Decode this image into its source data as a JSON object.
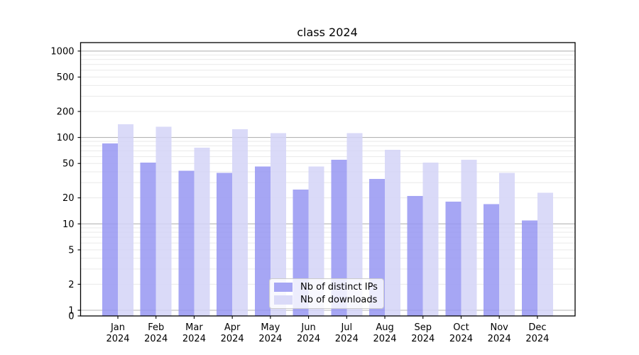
{
  "chart_data": {
    "type": "bar",
    "title": "class 2024",
    "categories": [
      "Jan 2024",
      "Feb 2024",
      "Mar 2024",
      "Apr 2024",
      "May 2024",
      "Jun 2024",
      "Jul 2024",
      "Aug 2024",
      "Sep 2024",
      "Oct 2024",
      "Nov 2024",
      "Dec 2024"
    ],
    "series": [
      {
        "name": "Nb of distinct IPs",
        "color": "#a6a6f4",
        "values": [
          85,
          51,
          41,
          39,
          46,
          25,
          55,
          33,
          21,
          18,
          17,
          11
        ]
      },
      {
        "name": "Nb of downloads",
        "color": "#dadaf8",
        "values": [
          142,
          133,
          76,
          124,
          112,
          46,
          112,
          72,
          51,
          55,
          39,
          23
        ]
      }
    ],
    "xlabel": "",
    "ylabel": "",
    "yscale": "symlog",
    "y_ticks": [
      0,
      1,
      2,
      5,
      10,
      20,
      50,
      100,
      200,
      500,
      1000
    ],
    "ylim": [
      0,
      1250
    ],
    "grid": "major and minor horizontal gridlines",
    "legend_position": "lower center",
    "colors": {
      "major_grid": "#b4b4b4",
      "minor_grid": "#e9e9e9",
      "axis": "#000000",
      "text": "#000000",
      "background": "#ffffff"
    }
  }
}
